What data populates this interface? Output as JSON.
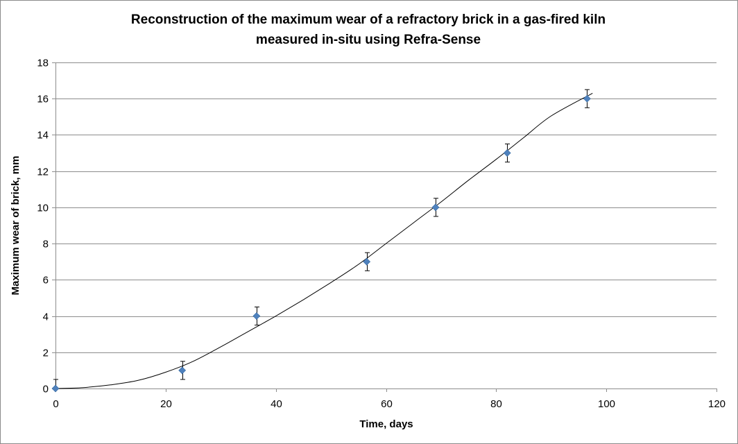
{
  "chart_data": {
    "type": "scatter",
    "title_lines": [
      "Reconstruction of the maximum wear of a refractory brick in a gas-fired kiln",
      "measured in-situ using Refra-Sense"
    ],
    "xlabel": "Time, days",
    "ylabel": "Maximum wear of brick, mm",
    "xlim": [
      0,
      120
    ],
    "ylim": [
      0,
      18
    ],
    "xticks": [
      0,
      20,
      40,
      60,
      80,
      100,
      120
    ],
    "yticks": [
      0,
      2,
      4,
      6,
      8,
      10,
      12,
      14,
      16,
      18
    ],
    "grid": "horizontal",
    "legend": "none",
    "marker": "diamond",
    "marker_color": "#4f81bd",
    "error_bar": 0.5,
    "points": [
      {
        "x": 0,
        "y": 0
      },
      {
        "x": 23,
        "y": 1
      },
      {
        "x": 36.5,
        "y": 4
      },
      {
        "x": 56.5,
        "y": 7
      },
      {
        "x": 69,
        "y": 10
      },
      {
        "x": 82,
        "y": 13
      },
      {
        "x": 96.5,
        "y": 16
      }
    ],
    "trendline": {
      "color": "#000000",
      "x": [
        0,
        5,
        10,
        15,
        20,
        25,
        30,
        35,
        40,
        45,
        50,
        55,
        60,
        65,
        70,
        75,
        80,
        85,
        90,
        97.5
      ],
      "y": [
        0,
        0.05,
        0.2,
        0.45,
        0.9,
        1.5,
        2.3,
        3.15,
        4.0,
        4.9,
        5.85,
        6.85,
        8.0,
        9.15,
        10.3,
        11.5,
        12.65,
        13.85,
        15.05,
        16.3
      ]
    }
  }
}
